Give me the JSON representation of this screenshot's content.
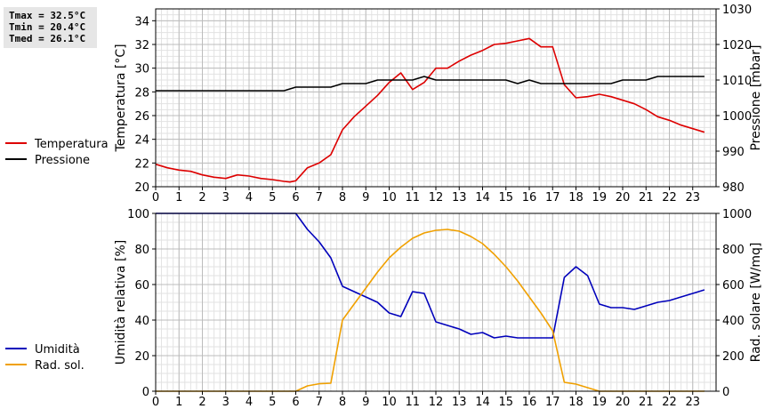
{
  "stats": {
    "tmax": "Tmax = 32.5°C",
    "tmin": "Tmin = 20.4°C",
    "tmed": "Tmed = 26.1°C"
  },
  "chart_data": [
    {
      "type": "line",
      "ylabel": "Temperatura [°C]",
      "y2label": "Pressione [mbar]",
      "xlim": [
        0,
        24
      ],
      "xticks": [
        0,
        1,
        2,
        3,
        4,
        5,
        6,
        7,
        8,
        9,
        10,
        11,
        12,
        13,
        14,
        15,
        16,
        17,
        18,
        19,
        20,
        21,
        22,
        23
      ],
      "ylim": [
        20,
        35
      ],
      "yticks": [
        20,
        22,
        24,
        26,
        28,
        30,
        32,
        34
      ],
      "y2lim": [
        980,
        1030
      ],
      "y2ticks": [
        980,
        990,
        1000,
        1010,
        1020,
        1030
      ],
      "grid": true,
      "legend_position": "left",
      "series": [
        {
          "name": "Temperatura",
          "axis": "left",
          "color": "#dd0000",
          "x": [
            0,
            0.5,
            1,
            1.5,
            2,
            2.5,
            3,
            3.5,
            4,
            4.5,
            5,
            5.5,
            5.75,
            6,
            6.5,
            7,
            7.5,
            8,
            8.5,
            9,
            9.5,
            10,
            10.5,
            11,
            11.5,
            12,
            12.5,
            13,
            13.5,
            14,
            14.5,
            15,
            15.5,
            16,
            16.5,
            17,
            17.5,
            18,
            18.5,
            19,
            19.5,
            20,
            20.5,
            21,
            21.5,
            22,
            22.5,
            23,
            23.5
          ],
          "y": [
            21.9,
            21.6,
            21.4,
            21.3,
            21.0,
            20.8,
            20.7,
            21.0,
            20.9,
            20.7,
            20.6,
            20.45,
            20.4,
            20.5,
            21.6,
            22.0,
            22.7,
            24.8,
            25.9,
            26.8,
            27.7,
            28.8,
            29.6,
            28.2,
            28.8,
            30.0,
            30.0,
            30.6,
            31.1,
            31.5,
            32.0,
            32.1,
            32.3,
            32.5,
            31.8,
            31.8,
            28.6,
            27.5,
            27.6,
            27.8,
            27.6,
            27.3,
            27.0,
            26.5,
            25.9,
            25.6,
            25.2,
            24.9,
            24.6
          ]
        },
        {
          "name": "Pressione",
          "axis": "right",
          "color": "#000000",
          "x": [
            0,
            0.5,
            1,
            1.5,
            2,
            2.5,
            3,
            3.5,
            4,
            4.5,
            5,
            5.5,
            6,
            6.5,
            7,
            7.5,
            8,
            8.5,
            9,
            9.5,
            10,
            10.5,
            11,
            11.5,
            12,
            12.5,
            13,
            13.5,
            14,
            14.5,
            15,
            15.5,
            16,
            16.5,
            17,
            17.5,
            18,
            18.5,
            19,
            19.5,
            20,
            20.5,
            21,
            21.5,
            22,
            22.5,
            23,
            23.5
          ],
          "y": [
            1007,
            1007,
            1007,
            1007,
            1007,
            1007,
            1007,
            1007,
            1007,
            1007,
            1007,
            1007,
            1008,
            1008,
            1008,
            1008,
            1009,
            1009,
            1009,
            1010,
            1010,
            1010,
            1010,
            1011,
            1010,
            1010,
            1010,
            1010,
            1010,
            1010,
            1010,
            1009,
            1010,
            1009,
            1009,
            1009,
            1009,
            1009,
            1009,
            1009,
            1010,
            1010,
            1010,
            1011,
            1011,
            1011,
            1011,
            1011
          ]
        }
      ]
    },
    {
      "type": "line",
      "ylabel": "Umidità relativa [%]",
      "y2label": "Rad. solare [W/mq]",
      "xlim": [
        0,
        24
      ],
      "xticks": [
        0,
        1,
        2,
        3,
        4,
        5,
        6,
        7,
        8,
        9,
        10,
        11,
        12,
        13,
        14,
        15,
        16,
        17,
        18,
        19,
        20,
        21,
        22,
        23
      ],
      "ylim": [
        0,
        100
      ],
      "yticks": [
        0,
        20,
        40,
        60,
        80,
        100
      ],
      "y2lim": [
        0,
        1000
      ],
      "y2ticks": [
        0,
        200,
        400,
        600,
        800,
        1000
      ],
      "grid": true,
      "legend_position": "left",
      "series": [
        {
          "name": "Umidità",
          "axis": "left",
          "color": "#0000bb",
          "x": [
            0,
            1,
            2,
            3,
            4,
            5,
            5.5,
            6,
            6.5,
            7,
            7.5,
            8,
            8.5,
            9,
            9.5,
            10,
            10.5,
            11,
            11.5,
            12,
            12.5,
            13,
            13.5,
            14,
            14.5,
            15,
            15.5,
            16,
            16.5,
            17,
            17.5,
            18,
            18.5,
            19,
            19.5,
            20,
            20.5,
            21,
            21.5,
            22,
            22.5,
            23,
            23.5
          ],
          "y": [
            100,
            100,
            100,
            100,
            100,
            100,
            100,
            100,
            91,
            84,
            75,
            59,
            56,
            53,
            50,
            44,
            42,
            56,
            55,
            39,
            37,
            35,
            32,
            33,
            30,
            31,
            30,
            30,
            30,
            30,
            64,
            70,
            65,
            49,
            47,
            47,
            46,
            48,
            50,
            51,
            53,
            55,
            57
          ]
        },
        {
          "name": "Rad. sol.",
          "axis": "right",
          "color": "#f0a000",
          "x": [
            0,
            1,
            2,
            3,
            4,
            5,
            6,
            6.5,
            7,
            7.5,
            8,
            8.5,
            9,
            9.5,
            10,
            10.5,
            11,
            11.5,
            12,
            12.5,
            13,
            13.5,
            14,
            14.5,
            15,
            15.5,
            16,
            16.5,
            17,
            17.5,
            18,
            18.5,
            19,
            20,
            21,
            22,
            23,
            23.5
          ],
          "y": [
            0,
            0,
            0,
            0,
            0,
            0,
            0,
            30,
            42,
            45,
            400,
            490,
            580,
            670,
            750,
            810,
            860,
            890,
            905,
            910,
            900,
            870,
            830,
            770,
            700,
            620,
            530,
            440,
            340,
            50,
            40,
            20,
            0,
            0,
            0,
            0,
            0,
            0
          ]
        }
      ]
    }
  ]
}
